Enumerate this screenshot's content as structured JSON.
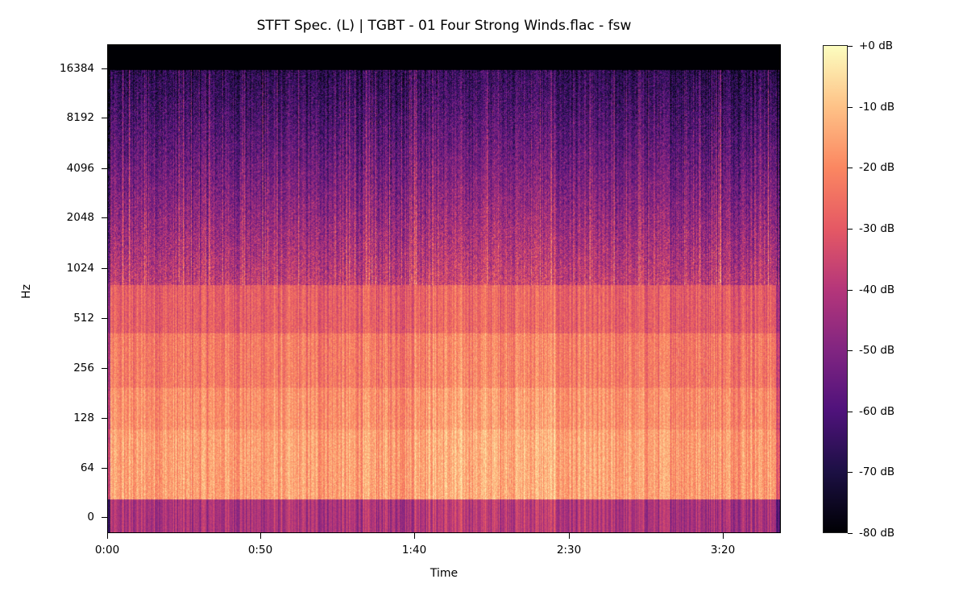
{
  "chart_data": {
    "type": "heatmap",
    "title": "STFT Spec. (L) | TGBT - 01 Four Strong Winds.flac - fsw",
    "xlabel": "Time",
    "ylabel": "Hz",
    "x_ticks": [
      "0:00",
      "0:50",
      "1:40",
      "2:30",
      "3:20"
    ],
    "x_tick_seconds": [
      0,
      50,
      100,
      150,
      200
    ],
    "x_range_seconds": [
      0,
      218
    ],
    "y_scale": "log2",
    "y_ticks": [
      "16384",
      "8192",
      "4096",
      "2048",
      "1024",
      "512",
      "256",
      "128",
      "64",
      "0"
    ],
    "y_tick_values": [
      16384,
      8192,
      4096,
      2048,
      1024,
      512,
      256,
      128,
      64,
      0
    ],
    "y_cutoff_hz": 16000,
    "colormap": "magma",
    "colorbar": {
      "ticks": [
        "+0 dB",
        "-10 dB",
        "-20 dB",
        "-30 dB",
        "-40 dB",
        "-50 dB",
        "-60 dB",
        "-70 dB",
        "-80 dB"
      ],
      "tick_values": [
        0,
        -10,
        -20,
        -30,
        -40,
        -50,
        -60,
        -70,
        -80
      ],
      "range": [
        -80,
        0
      ]
    },
    "band_profile_db": [
      {
        "band": "0-32 Hz",
        "mean": -40
      },
      {
        "band": "32-96 Hz",
        "mean": -18
      },
      {
        "band": "96-180 Hz",
        "mean": -20
      },
      {
        "band": "180-400 Hz",
        "mean": -24
      },
      {
        "band": "400-800 Hz",
        "mean": -30
      },
      {
        "band": "800-2000 Hz",
        "mean": -42
      },
      {
        "band": "2000-5000 Hz",
        "mean": -52
      },
      {
        "band": "5000-16000 Hz",
        "mean": -66
      },
      {
        "band": ">16000 Hz",
        "mean": -80
      }
    ]
  },
  "colors": {
    "magma_stops": [
      "#000004",
      "#1c1044",
      "#4f127b",
      "#812581",
      "#b5367a",
      "#e55964",
      "#fb8761",
      "#fec287",
      "#fcfdbf"
    ]
  }
}
